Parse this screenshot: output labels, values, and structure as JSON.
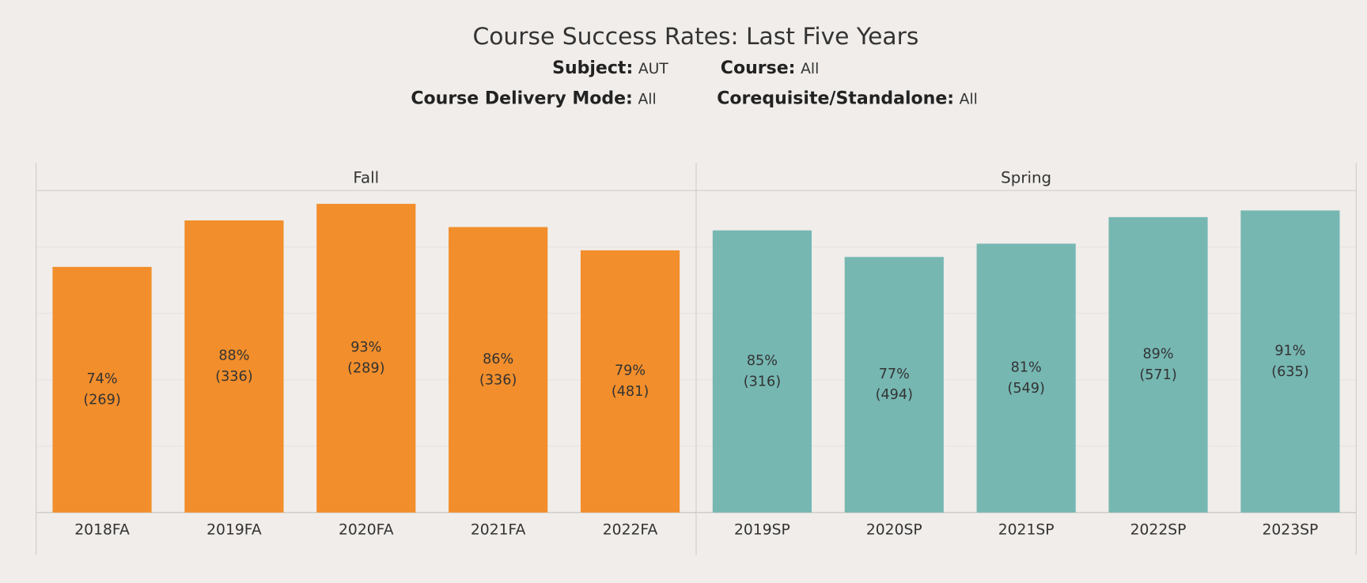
{
  "chart_data": {
    "type": "bar",
    "title": "Course Success Rates: Last Five Years",
    "filters": [
      {
        "label": "Subject:",
        "value": "AUT"
      },
      {
        "label": "Course:",
        "value": "All"
      },
      {
        "label": "Course Delivery Mode:",
        "value": "All"
      },
      {
        "label": "Corequisite/Standalone:",
        "value": "All"
      }
    ],
    "ylim": [
      0,
      97
    ],
    "yticks": [
      0,
      20,
      40,
      60,
      80
    ],
    "grid": true,
    "panels": [
      {
        "name": "Fall",
        "color": "#f28e2b",
        "categories": [
          "2018FA",
          "2019FA",
          "2020FA",
          "2021FA",
          "2022FA"
        ],
        "values": [
          74,
          88,
          93,
          86,
          79
        ],
        "value_labels": [
          "74%",
          "88%",
          "93%",
          "86%",
          "79%"
        ],
        "count_labels": [
          "(269)",
          "(336)",
          "(289)",
          "(336)",
          "(481)"
        ]
      },
      {
        "name": "Spring",
        "color": "#76b7b2",
        "categories": [
          "2019SP",
          "2020SP",
          "2021SP",
          "2022SP",
          "2023SP"
        ],
        "values": [
          85,
          77,
          81,
          89,
          91
        ],
        "value_labels": [
          "85%",
          "77%",
          "81%",
          "89%",
          "91%"
        ],
        "count_labels": [
          "(316)",
          "(494)",
          "(549)",
          "(571)",
          "(635)"
        ]
      }
    ]
  }
}
